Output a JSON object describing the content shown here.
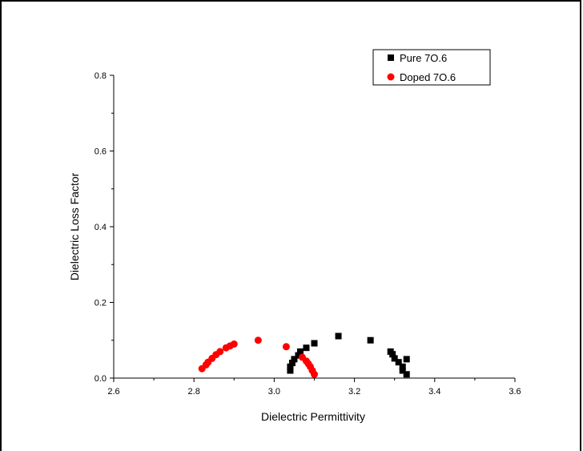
{
  "chart_data": {
    "type": "scatter",
    "xlabel": "Dielectric Permittivity",
    "ylabel": "Dielectric Loss Factor",
    "xlim": [
      2.6,
      3.6
    ],
    "ylim": [
      0.0,
      0.8
    ],
    "x_ticks": [
      "2.6",
      "2.8",
      "3.0",
      "3.2",
      "3.4",
      "3.6"
    ],
    "y_ticks": [
      "0.0",
      "0.2",
      "0.4",
      "0.6",
      "0.8"
    ],
    "grid": false,
    "legend_position": "top-right",
    "series": [
      {
        "name": "Pure 7O.6",
        "marker": "square",
        "color": "#000000",
        "points": [
          [
            3.04,
            0.02
          ],
          [
            3.04,
            0.03
          ],
          [
            3.045,
            0.04
          ],
          [
            3.05,
            0.05
          ],
          [
            3.06,
            0.06
          ],
          [
            3.065,
            0.07
          ],
          [
            3.08,
            0.08
          ],
          [
            3.1,
            0.092
          ],
          [
            3.16,
            0.111
          ],
          [
            3.24,
            0.1
          ],
          [
            3.29,
            0.07
          ],
          [
            3.295,
            0.063
          ],
          [
            3.3,
            0.052
          ],
          [
            3.31,
            0.042
          ],
          [
            3.32,
            0.03
          ],
          [
            3.32,
            0.02
          ],
          [
            3.33,
            0.05
          ],
          [
            3.33,
            0.01
          ]
        ]
      },
      {
        "name": "Doped 7O.6",
        "marker": "circle",
        "color": "#ff0000",
        "points": [
          [
            2.82,
            0.025
          ],
          [
            2.83,
            0.035
          ],
          [
            2.835,
            0.042
          ],
          [
            2.845,
            0.052
          ],
          [
            2.855,
            0.062
          ],
          [
            2.865,
            0.07
          ],
          [
            2.88,
            0.08
          ],
          [
            2.89,
            0.085
          ],
          [
            2.9,
            0.09
          ],
          [
            2.96,
            0.1
          ],
          [
            3.03,
            0.083
          ],
          [
            3.07,
            0.055
          ],
          [
            3.08,
            0.045
          ],
          [
            3.085,
            0.038
          ],
          [
            3.09,
            0.03
          ],
          [
            3.095,
            0.02
          ],
          [
            3.1,
            0.01
          ]
        ]
      }
    ]
  }
}
